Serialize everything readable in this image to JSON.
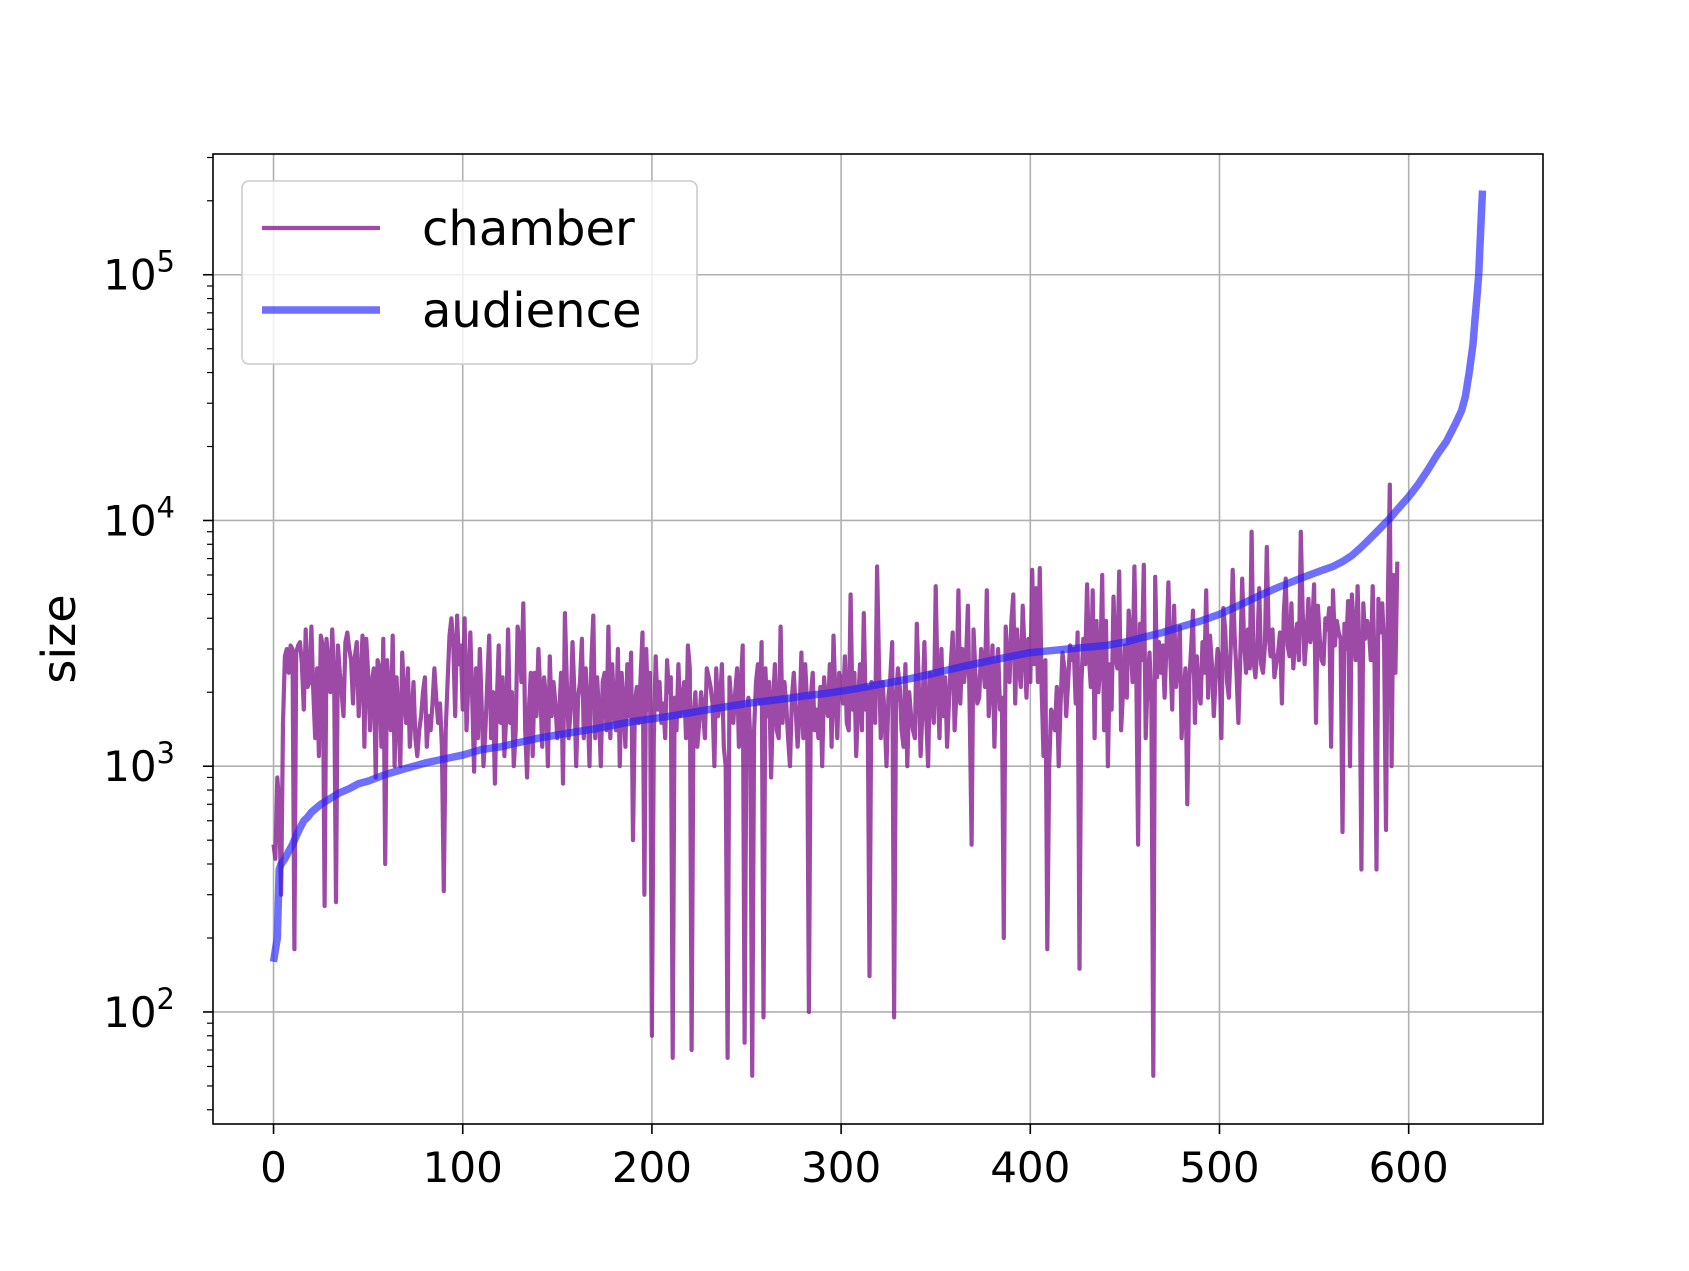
{
  "chart_data": {
    "type": "line",
    "title": "",
    "xlabel": "",
    "ylabel": "size",
    "yscale": "log",
    "xlim": [
      -32,
      671
    ],
    "ylim": [
      35,
      310000
    ],
    "grid": true,
    "legend_position": "top-left",
    "x_ticks": [
      "0",
      "100",
      "200",
      "300",
      "400",
      "500",
      "600"
    ],
    "y_ticks": [
      {
        "base": "10",
        "exp": "2"
      },
      {
        "base": "10",
        "exp": "3"
      },
      {
        "base": "10",
        "exp": "4"
      },
      {
        "base": "10",
        "exp": "5"
      }
    ],
    "series": [
      {
        "name": "chamber",
        "color": "#8B2A96",
        "x_start": 0,
        "x_step": 1,
        "approx_count": 640,
        "values": [
          480,
          420,
          900,
          700,
          300,
          1500,
          2800,
          3000,
          2400,
          3100,
          3000,
          180,
          2900,
          3100,
          3200,
          2600,
          1700,
          3600,
          2100,
          2200,
          3700,
          2000,
          1300,
          2500,
          1100,
          3400,
          3100,
          270,
          3300,
          2600,
          2000,
          3600,
          2400,
          280,
          3100,
          2400,
          2000,
          1600,
          3200,
          3500,
          3000,
          2700,
          1800,
          2800,
          3200,
          1600,
          2300,
          3400,
          1200,
          3300,
          2400,
          1400,
          2200,
          2500,
          900,
          2700,
          2500,
          1200,
          3300,
          400,
          2700,
          2000,
          1400,
          3400,
          1000,
          2300,
          1600,
          1000,
          2900,
          1900,
          1500,
          2500,
          1200,
          1600,
          2200,
          1300,
          1100,
          1400,
          1600,
          2000,
          2300,
          1200,
          1600,
          1400,
          1800,
          2500,
          1900,
          1500,
          1800,
          1200,
          310,
          1400,
          2200,
          3400,
          4000,
          3100,
          1600,
          4100,
          2600,
          3100,
          1700,
          4000,
          1400,
          2200,
          3500,
          1900,
          950,
          2500,
          1300,
          3000,
          1800,
          1000,
          1400,
          2200,
          3400,
          1300,
          2000,
          850,
          1800,
          3100,
          1500,
          2300,
          1100,
          1600,
          3600,
          1500,
          2000,
          1000,
          1400,
          3700,
          3300,
          2200,
          4600,
          1400,
          900,
          1700,
          2400,
          1100,
          2400,
          1600,
          3000,
          2000,
          1200,
          2300,
          1900,
          1000,
          2800,
          1600,
          2200,
          1800,
          1300,
          1600,
          2400,
          850,
          4200,
          2200,
          1300,
          1700,
          3200,
          2000,
          1000,
          1900,
          2200,
          3300,
          1300,
          2500,
          1800,
          1000,
          2700,
          4100,
          1300,
          2300,
          1700,
          1000,
          2200,
          2400,
          1400,
          3700,
          1300,
          2600,
          1700,
          1400,
          3000,
          1000,
          2400,
          1800,
          1200,
          2600,
          1600,
          2900,
          500,
          1800,
          2100,
          1500,
          2300,
          3500,
          300,
          3000,
          1700,
          2400,
          80,
          1300,
          2800,
          1700,
          2200,
          1500,
          1800,
          1300,
          2700,
          2000,
          2300,
          65,
          1900,
          1400,
          2600,
          1600,
          1800,
          2200,
          1300,
          3100,
          2500,
          70,
          1600,
          2000,
          1200,
          1500,
          2000,
          1700,
          1300,
          2500,
          2300,
          2100,
          1800,
          1000,
          2500,
          1600,
          1800,
          2600,
          1200,
          1000,
          65,
          2300,
          1800,
          1500,
          2000,
          2500,
          1200,
          2100,
          3100,
          75,
          1600,
          1900,
          1300,
          55,
          1400,
          2200,
          2600,
          1800,
          3200,
          95,
          2500,
          1600,
          2200,
          900,
          1800,
          2600,
          1400,
          1300,
          3700,
          1500,
          2200,
          1800,
          1300,
          1000,
          1900,
          2400,
          1700,
          1200,
          1600,
          2900,
          1300,
          2600,
          1800,
          100,
          1900,
          2400,
          1400,
          1700,
          1300,
          2100,
          1000,
          2300,
          1800,
          1600,
          2600,
          1200,
          3400,
          1900,
          1300,
          2400,
          2200,
          1800,
          2800,
          1500,
          1400,
          5000,
          1700,
          2400,
          1100,
          1800,
          2600,
          1400,
          4200,
          1700,
          2100,
          140,
          2200,
          1800,
          1500,
          6500,
          2700,
          1300,
          2200,
          1600,
          1000,
          1900,
          2300,
          3200,
          95,
          1800,
          2500,
          2100,
          1400,
          1200,
          2600,
          1000,
          2000,
          1600,
          1400,
          1300,
          3800,
          2200,
          1100,
          1700,
          3200,
          1600,
          1000,
          2400,
          1900,
          1500,
          5400,
          2100,
          1300,
          3000,
          1600,
          2300,
          1200,
          1800,
          2600,
          3500,
          1400,
          2000,
          5200,
          1800,
          3000,
          2200,
          2700,
          4500,
          1600,
          480,
          3600,
          2400,
          1800,
          1900,
          3000,
          2600,
          2100,
          5200,
          1600,
          2200,
          3100,
          1200,
          2400,
          3000,
          1700,
          1900,
          200,
          3700,
          2700,
          2200,
          3900,
          5000,
          1800,
          3600,
          2600,
          2100,
          4500,
          2900,
          1900,
          3300,
          2200,
          6300,
          2600,
          5300,
          2200,
          6400,
          2100,
          1100,
          2700,
          180,
          1000,
          1700,
          1600,
          1400,
          2100,
          1000,
          1800,
          2900,
          2500,
          1600,
          2200,
          3100,
          2700,
          3000,
          1800,
          3500,
          150,
          2200,
          3300,
          2600,
          5500,
          2800,
          2100,
          5200,
          1300,
          3900,
          2000,
          2600,
          6000,
          1400,
          3900,
          1000,
          2600,
          1700,
          4900,
          2800,
          2500,
          6200,
          1400,
          2000,
          3100,
          1900,
          4300,
          3400,
          2200,
          6500,
          2600,
          480,
          3800,
          2700,
          6600,
          1300,
          2200,
          2900,
          1800,
          55,
          5900,
          2300,
          3200,
          2400,
          3100,
          1900,
          3100,
          5600,
          2800,
          1700,
          4500,
          2100,
          2600,
          3700,
          1300,
          1900,
          2500,
          700,
          2200,
          3000,
          4300,
          1500,
          2800,
          2000,
          1800,
          3200,
          2400,
          5200,
          1900,
          3400,
          2600,
          1600,
          2300,
          3000,
          2700,
          1300,
          4400,
          3600,
          2200,
          1900,
          3100,
          6300,
          3400,
          2400,
          1500,
          2800,
          5800,
          3200,
          2400,
          3600,
          2500,
          9000,
          2700,
          2300,
          3000,
          5300,
          2600,
          2400,
          3100,
          7800,
          3400,
          2800,
          3600,
          2300,
          2600,
          2900,
          3500,
          1800,
          4200,
          5800,
          3100,
          2800,
          4600,
          2500,
          3300,
          3800,
          2700,
          9000,
          4200,
          2600,
          3400,
          4800,
          3200,
          3700,
          5500,
          1500,
          4500,
          3300,
          2700,
          2600,
          4000,
          3600,
          4400,
          1200,
          5200,
          3100,
          3900,
          3500,
          3300,
          540,
          3800,
          3000,
          4700,
          1000,
          5000,
          3600,
          2700,
          5400,
          2900,
          380,
          4600,
          3300,
          3900,
          3600,
          2700,
          5400,
          2500,
          380,
          4800,
          3500,
          4600,
          3100,
          550,
          4900,
          14000,
          1000,
          6000,
          2400,
          6800
        ]
      },
      {
        "name": "audience",
        "color": "#2020FF",
        "x": [
          0,
          2,
          3,
          4,
          6,
          8,
          10,
          12,
          14,
          16,
          18,
          20,
          25,
          30,
          35,
          40,
          45,
          50,
          55,
          60,
          70,
          80,
          90,
          100,
          110,
          120,
          130,
          140,
          150,
          160,
          170,
          180,
          190,
          200,
          210,
          220,
          230,
          240,
          250,
          260,
          270,
          280,
          290,
          300,
          310,
          320,
          330,
          340,
          350,
          360,
          370,
          380,
          390,
          400,
          410,
          420,
          430,
          440,
          450,
          460,
          470,
          480,
          490,
          500,
          510,
          520,
          530,
          540,
          550,
          555,
          560,
          565,
          570,
          575,
          580,
          585,
          590,
          595,
          600,
          605,
          610,
          615,
          620,
          625,
          628,
          630,
          632,
          634,
          635,
          636,
          637,
          638,
          639
        ],
        "values": [
          160,
          200,
          380,
          400,
          420,
          450,
          480,
          520,
          560,
          600,
          620,
          650,
          700,
          740,
          780,
          810,
          850,
          870,
          900,
          930,
          980,
          1030,
          1070,
          1110,
          1170,
          1200,
          1250,
          1300,
          1340,
          1380,
          1420,
          1470,
          1520,
          1560,
          1600,
          1650,
          1700,
          1750,
          1800,
          1840,
          1880,
          1930,
          1970,
          2020,
          2080,
          2150,
          2220,
          2300,
          2400,
          2500,
          2600,
          2700,
          2800,
          2900,
          2950,
          3000,
          3050,
          3100,
          3200,
          3350,
          3500,
          3700,
          3900,
          4150,
          4500,
          4900,
          5300,
          5700,
          6100,
          6300,
          6500,
          6800,
          7200,
          7800,
          8500,
          9300,
          10200,
          11300,
          12500,
          14000,
          16000,
          18500,
          21000,
          25000,
          28000,
          32000,
          40000,
          52000,
          65000,
          80000,
          100000,
          150000,
          220000
        ]
      }
    ]
  }
}
